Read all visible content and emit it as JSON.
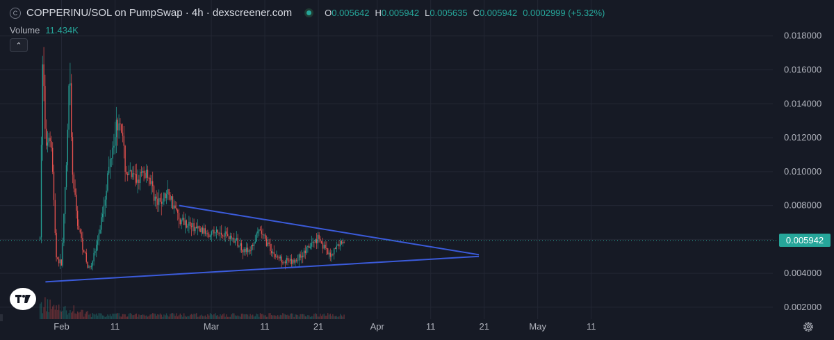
{
  "header": {
    "symbol_icon": "C",
    "title": "COPPERINU/SOL on PumpSwap · 4h · dexscreener.com",
    "open_label": "O",
    "open": "0.005642",
    "high_label": "H",
    "high": "0.005942",
    "low_label": "L",
    "low": "0.005635",
    "close_label": "C",
    "close": "0.005942",
    "change": "0.0002999 (+5.32%)"
  },
  "volume": {
    "label": "Volume",
    "value": "11.434K"
  },
  "current_price": "0.005942",
  "colors": {
    "background": "#161a25",
    "up": "#26a69a",
    "down": "#ef5350",
    "trendline": "#3b5bdb"
  },
  "icons": {
    "logo": "tradingview-logo-icon",
    "settings": "gear-icon",
    "collapse": "chevron-up-icon"
  },
  "chart_data": {
    "type": "candlestick",
    "title": "COPPERINU/SOL on PumpSwap · 4h · dexscreener.com",
    "interval": "4h",
    "x_range": [
      "2025-01-27",
      "2025-05-20"
    ],
    "ylim": [
      0.0013,
      0.0193
    ],
    "y_ticks": [
      "0.018000",
      "0.016000",
      "0.014000",
      "0.012000",
      "0.010000",
      "0.008000",
      "0.006000",
      "0.004000",
      "0.002000"
    ],
    "y_tick_values": [
      0.018,
      0.016,
      0.014,
      0.012,
      0.01,
      0.008,
      0.006,
      0.004,
      0.002
    ],
    "x_ticks": [
      {
        "label": "Feb",
        "date": "2025-02-01"
      },
      {
        "label": "11",
        "date": "2025-02-11"
      },
      {
        "label": "Mar",
        "date": "2025-03-01"
      },
      {
        "label": "11",
        "date": "2025-03-11"
      },
      {
        "label": "21",
        "date": "2025-03-21"
      },
      {
        "label": "Apr",
        "date": "2025-04-01"
      },
      {
        "label": "11",
        "date": "2025-04-11"
      },
      {
        "label": "21",
        "date": "2025-04-21"
      },
      {
        "label": "May",
        "date": "2025-05-01"
      },
      {
        "label": "11",
        "date": "2025-05-11"
      }
    ],
    "price_path": [
      {
        "date": "2025-01-28",
        "price": 0.006
      },
      {
        "date": "2025-01-28T12",
        "price": 0.0175
      },
      {
        "date": "2025-01-29",
        "price": 0.0115
      },
      {
        "date": "2025-01-30",
        "price": 0.0125
      },
      {
        "date": "2025-01-31",
        "price": 0.005
      },
      {
        "date": "2025-02-01",
        "price": 0.0045
      },
      {
        "date": "2025-02-02",
        "price": 0.0108
      },
      {
        "date": "2025-02-02T12",
        "price": 0.016
      },
      {
        "date": "2025-02-03",
        "price": 0.01
      },
      {
        "date": "2025-02-04",
        "price": 0.007
      },
      {
        "date": "2025-02-06",
        "price": 0.0042
      },
      {
        "date": "2025-02-07",
        "price": 0.005
      },
      {
        "date": "2025-02-08",
        "price": 0.0062
      },
      {
        "date": "2025-02-10",
        "price": 0.0105
      },
      {
        "date": "2025-02-11",
        "price": 0.0125
      },
      {
        "date": "2025-02-12",
        "price": 0.0132
      },
      {
        "date": "2025-02-13",
        "price": 0.01
      },
      {
        "date": "2025-02-15",
        "price": 0.0095
      },
      {
        "date": "2025-02-17",
        "price": 0.01
      },
      {
        "date": "2025-02-19",
        "price": 0.008
      },
      {
        "date": "2025-02-21",
        "price": 0.0088
      },
      {
        "date": "2025-02-23",
        "price": 0.0072
      },
      {
        "date": "2025-02-27",
        "price": 0.0065
      },
      {
        "date": "2025-03-04",
        "price": 0.0063
      },
      {
        "date": "2025-03-08",
        "price": 0.0052
      },
      {
        "date": "2025-03-10",
        "price": 0.0065
      },
      {
        "date": "2025-03-13",
        "price": 0.005
      },
      {
        "date": "2025-03-16",
        "price": 0.0046
      },
      {
        "date": "2025-03-19",
        "price": 0.0054
      },
      {
        "date": "2025-03-21",
        "price": 0.0062
      },
      {
        "date": "2025-03-23",
        "price": 0.005
      },
      {
        "date": "2025-03-25",
        "price": 0.0058
      },
      {
        "date": "2025-03-26",
        "price": 0.005942
      }
    ],
    "trendlines": [
      {
        "name": "upper",
        "from": {
          "date": "2025-02-23",
          "price": 0.008
        },
        "to": {
          "date": "2025-04-20",
          "price": 0.0051
        }
      },
      {
        "name": "lower",
        "from": {
          "date": "2025-01-29",
          "price": 0.0035
        },
        "to": {
          "date": "2025-04-20",
          "price": 0.005
        }
      }
    ],
    "grid": true,
    "legend": "none"
  }
}
